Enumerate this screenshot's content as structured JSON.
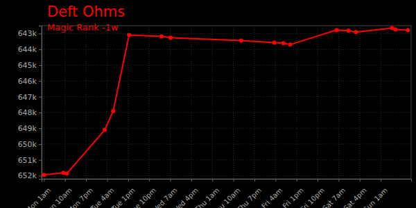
{
  "chart_data": {
    "type": "line",
    "title": "Deft Ohms",
    "subtitle": "Magic Rank -1w",
    "x": [
      1,
      9.3,
      10.8,
      27,
      30.6,
      37.4,
      51.3,
      55.1,
      85.3,
      99.5,
      103.4,
      106.3,
      126.1,
      131.2,
      134.4,
      149.8,
      151.3,
      156.6
    ],
    "series": [
      {
        "name": "Magic Rank",
        "color": "#ff0000",
        "marker": "circle",
        "values": [
          651950,
          651820,
          651860,
          649100,
          647910,
          643090,
          643180,
          643260,
          643440,
          643570,
          643610,
          643700,
          642780,
          642820,
          642910,
          642650,
          642740,
          642780
        ]
      }
    ],
    "xlim": [
      0,
      158
    ],
    "xticks": [
      {
        "value": 1,
        "label": "Mon 1am"
      },
      {
        "value": 10,
        "label": "Mon 10am"
      },
      {
        "value": 19,
        "label": "Mon 7pm"
      },
      {
        "value": 28,
        "label": "Tue 4am"
      },
      {
        "value": 37,
        "label": "Tue 1pm"
      },
      {
        "value": 46,
        "label": "Tue 10pm"
      },
      {
        "value": 55,
        "label": "Wed 7am"
      },
      {
        "value": 64,
        "label": "Wed 4pm"
      },
      {
        "value": 73,
        "label": "Thu 1am"
      },
      {
        "value": 82,
        "label": "Thu 10am"
      },
      {
        "value": 91,
        "label": "Thu 7pm"
      },
      {
        "value": 100,
        "label": "Fri 4am"
      },
      {
        "value": 109,
        "label": "Fri 1pm"
      },
      {
        "value": 118,
        "label": "Fri 10pm"
      },
      {
        "value": 127,
        "label": "Sat 7am"
      },
      {
        "value": 136,
        "label": "Sat 4pm"
      },
      {
        "value": 145,
        "label": "Sun 1am"
      }
    ],
    "ylim": [
      652200,
      642500
    ],
    "yticks": [
      {
        "value": 643000,
        "label": "643k"
      },
      {
        "value": 644000,
        "label": "644k"
      },
      {
        "value": 645000,
        "label": "645k"
      },
      {
        "value": 646000,
        "label": "646k"
      },
      {
        "value": 647000,
        "label": "647k"
      },
      {
        "value": 648000,
        "label": "648k"
      },
      {
        "value": 649000,
        "label": "649k"
      },
      {
        "value": 650000,
        "label": "650k"
      },
      {
        "value": 651000,
        "label": "651k"
      },
      {
        "value": 652000,
        "label": "652k"
      }
    ],
    "grid": true
  }
}
